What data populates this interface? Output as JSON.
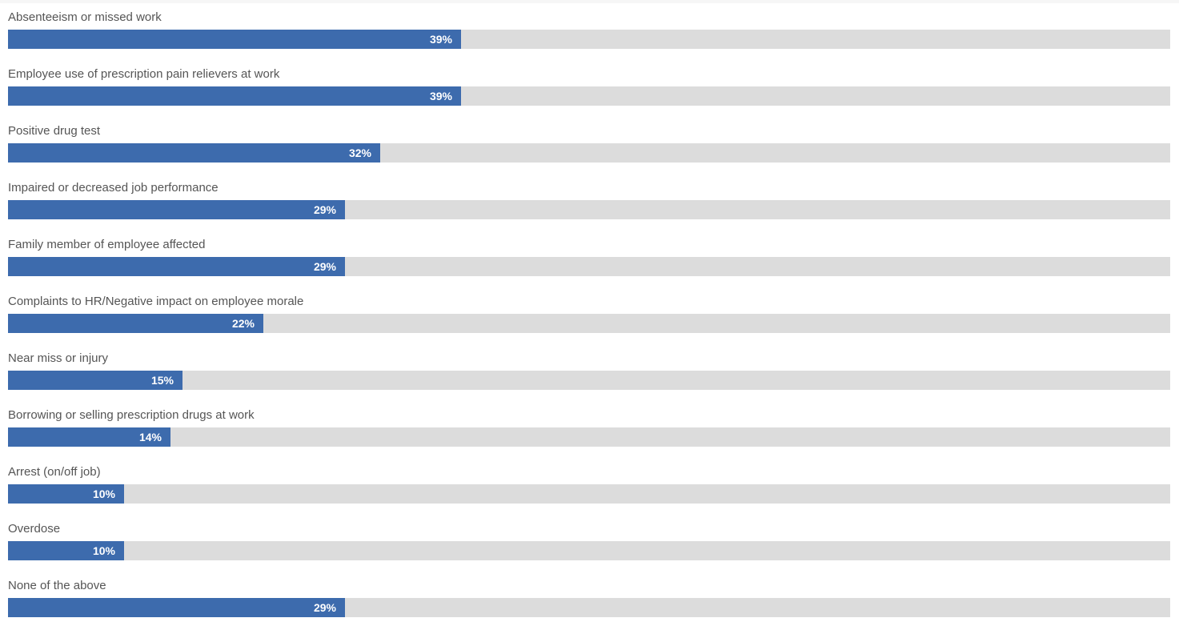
{
  "chart_data": {
    "type": "bar",
    "orientation": "horizontal",
    "title": "",
    "xlabel": "",
    "ylabel": "",
    "xlim": [
      0,
      100
    ],
    "grid": false,
    "legend": "none",
    "colors": {
      "bar": "#3d6bad",
      "track": "#dcdcdc",
      "label": "#555555",
      "value_text": "#ffffff"
    },
    "categories": [
      "Absenteeism or missed work",
      "Employee use of prescription pain relievers at work",
      "Positive drug test",
      "Impaired or decreased job performance",
      "Family member of employee affected",
      "Complaints to HR/Negative impact on employee morale",
      "Near miss or injury",
      "Borrowing or selling prescription drugs at work",
      "Arrest (on/off job)",
      "Overdose",
      "None of the above"
    ],
    "values": [
      39,
      39,
      32,
      29,
      29,
      22,
      15,
      14,
      10,
      10,
      29
    ],
    "value_labels": [
      "39%",
      "39%",
      "32%",
      "29%",
      "29%",
      "22%",
      "15%",
      "14%",
      "10%",
      "10%",
      "29%"
    ]
  }
}
